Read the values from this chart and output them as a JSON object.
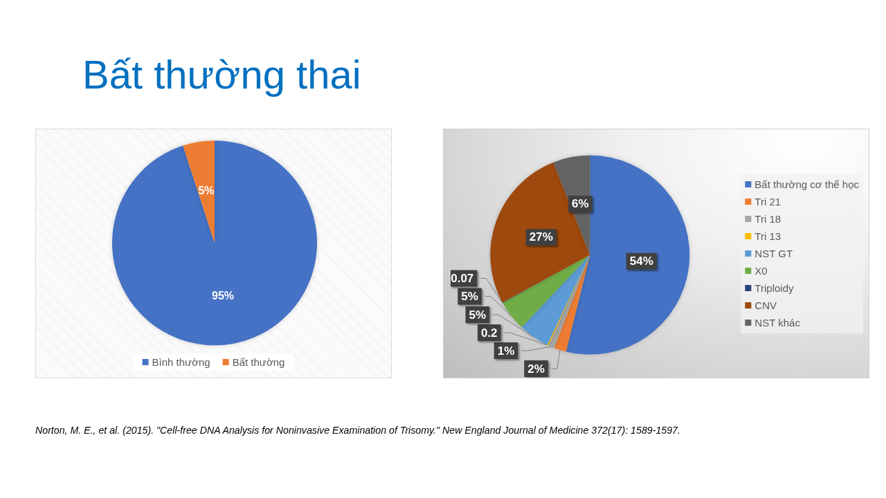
{
  "chart_data": [
    {
      "type": "pie",
      "title": "Bất thường thai",
      "categories": [
        "Bình thường",
        "Bất thường"
      ],
      "values": [
        95,
        5
      ],
      "colors": [
        "#4472c4",
        "#ed7d31"
      ],
      "value_labels": [
        "95%",
        "5%"
      ],
      "legend": "bottom"
    },
    {
      "type": "pie",
      "categories": [
        "Bất thường cơ thể học",
        "Tri 21",
        "Tri 18",
        "Tri 13",
        "NST GT",
        "X0",
        "Triploidy",
        "CNV",
        "NST khác"
      ],
      "values": [
        54,
        2,
        1,
        0.2,
        5,
        5,
        0.07,
        27,
        6
      ],
      "colors": [
        "#4472c4",
        "#ed7d31",
        "#a5a5a5",
        "#ffc000",
        "#5b9bd5",
        "#70ad47",
        "#264478",
        "#9e480e",
        "#636363"
      ],
      "value_labels": [
        "54%",
        "2%",
        "1%",
        "0.2",
        "5%",
        "5%",
        "0.07",
        "27%",
        "6%"
      ],
      "legend": "right",
      "annotations": [
        "Norton, M. E., et al. (2015). \"Cell-free DNA Analysis for Noninvasive Examination of Trisomy.\" New England Journal of Medicine 372(17): 1589-1597."
      ]
    }
  ]
}
